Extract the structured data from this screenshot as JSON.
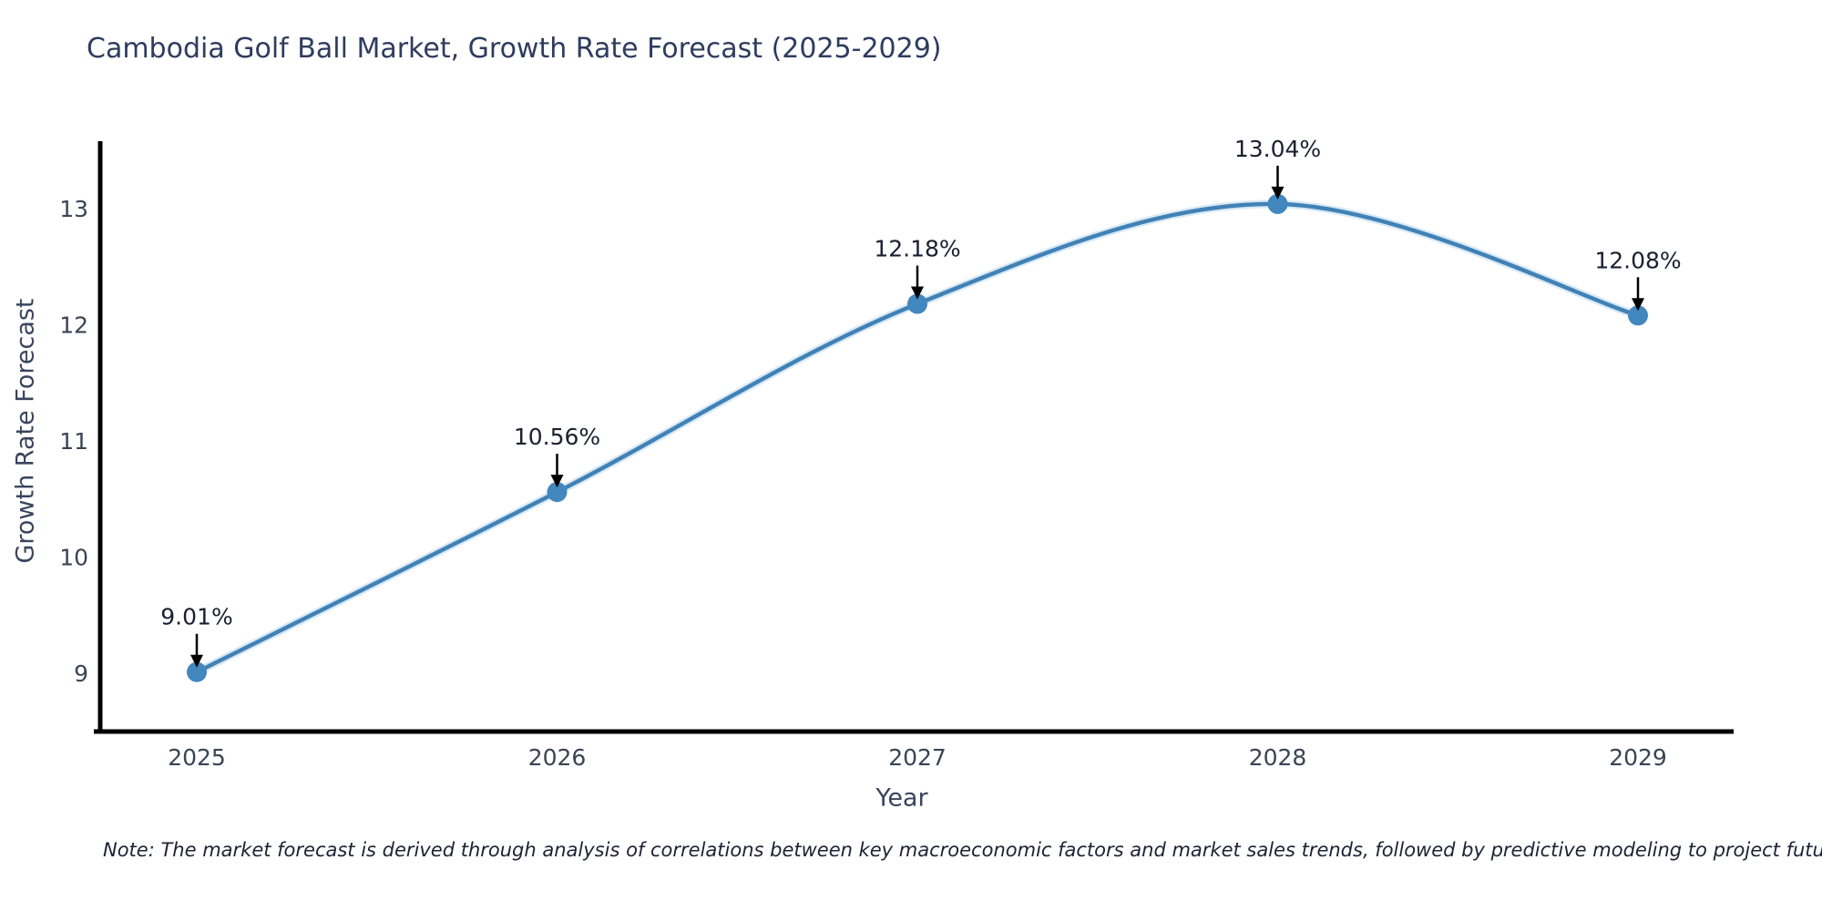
{
  "page": {
    "note": "Note: The market forecast is derived through analysis of correlations between key macroeconomic factors and market sales trends, followed by predictive modeling to project future sales."
  },
  "chart_data": {
    "type": "line",
    "title": "Cambodia Golf Ball Market, Growth Rate Forecast (2025-2029)",
    "xlabel": "Year",
    "ylabel": "Growth Rate Forecast",
    "categories": [
      "2025",
      "2026",
      "2027",
      "2028",
      "2029"
    ],
    "series": [
      {
        "name": "Growth Rate Forecast",
        "values": [
          9.01,
          10.56,
          12.18,
          13.04,
          12.08
        ],
        "point_labels": [
          "9.01%",
          "10.56%",
          "12.18%",
          "13.04%",
          "12.08%"
        ]
      }
    ],
    "yticks": [
      9,
      10,
      11,
      12,
      13
    ],
    "ylim": [
      8.5,
      13.6
    ],
    "grid": false,
    "legend": false,
    "annotation_style": "label-above-with-down-arrow",
    "colors": {
      "line": "#4182b6",
      "line_glow": "#b9d7ee",
      "marker": "#4287bd",
      "annotation_text": "#1a2030",
      "arrow": "#000000",
      "axis_spine": "#000000",
      "tick_label": "#3a4454",
      "title": "#2e3c5e"
    }
  }
}
